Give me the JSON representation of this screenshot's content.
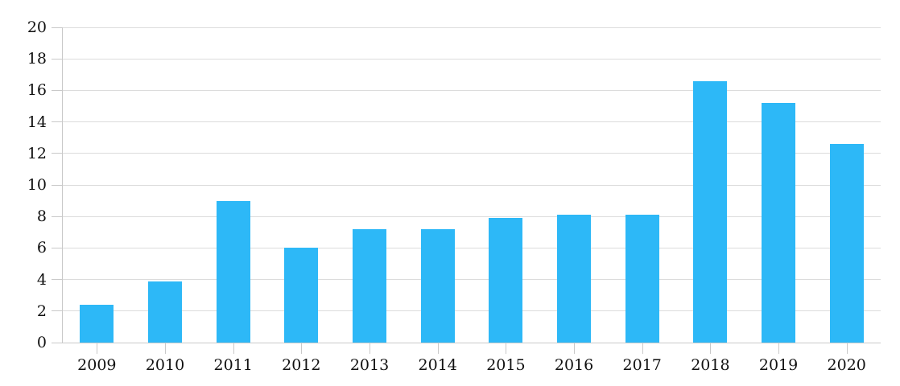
{
  "chart_data": {
    "type": "bar",
    "categories": [
      "2009",
      "2010",
      "2011",
      "2012",
      "2013",
      "2014",
      "2015",
      "2016",
      "2017",
      "2018",
      "2019",
      "2020"
    ],
    "values": [
      2.4,
      3.9,
      9.0,
      6.0,
      7.2,
      7.2,
      7.9,
      8.1,
      8.1,
      16.6,
      15.2,
      12.6
    ],
    "title": "",
    "xlabel": "",
    "ylabel": "",
    "ylim": [
      0,
      20
    ],
    "ytick_step": 2,
    "yticks": [
      "0",
      "2",
      "4",
      "6",
      "8",
      "10",
      "12",
      "14",
      "16",
      "18",
      "20"
    ],
    "grid": "horizontal",
    "legend_position": "none",
    "bar_color": "#2DB8F7",
    "grid_color": "#DCDCDC",
    "axis_color": "#C9C9C9",
    "text_color": "#111111"
  }
}
